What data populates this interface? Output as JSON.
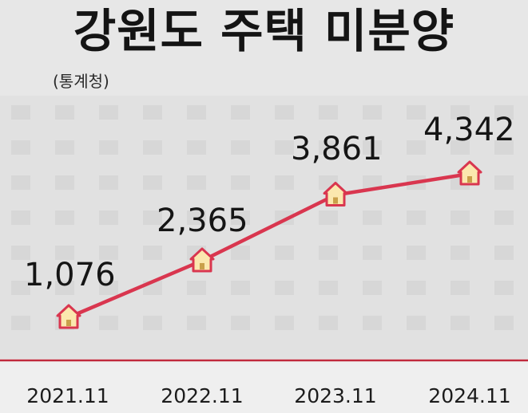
{
  "header": {
    "title": "강원도 주택 미분양",
    "source": "(통계청)"
  },
  "colors": {
    "line": "#d9364f",
    "baseline": "#c02a3c",
    "marker_fill": "#fbe8ae",
    "marker_stroke": "#d9364f"
  },
  "chart_data": {
    "type": "line",
    "title": "강원도 주택 미분양",
    "source": "(통계청)",
    "categories": [
      "2021.11",
      "2022.11",
      "2023.11",
      "2024.11"
    ],
    "values": [
      1076,
      2365,
      3861,
      4342
    ],
    "value_labels": [
      "1,076",
      "2,365",
      "3,861",
      "4,342"
    ],
    "marker_icon": "house-icon",
    "grid": false,
    "legend": "none"
  }
}
